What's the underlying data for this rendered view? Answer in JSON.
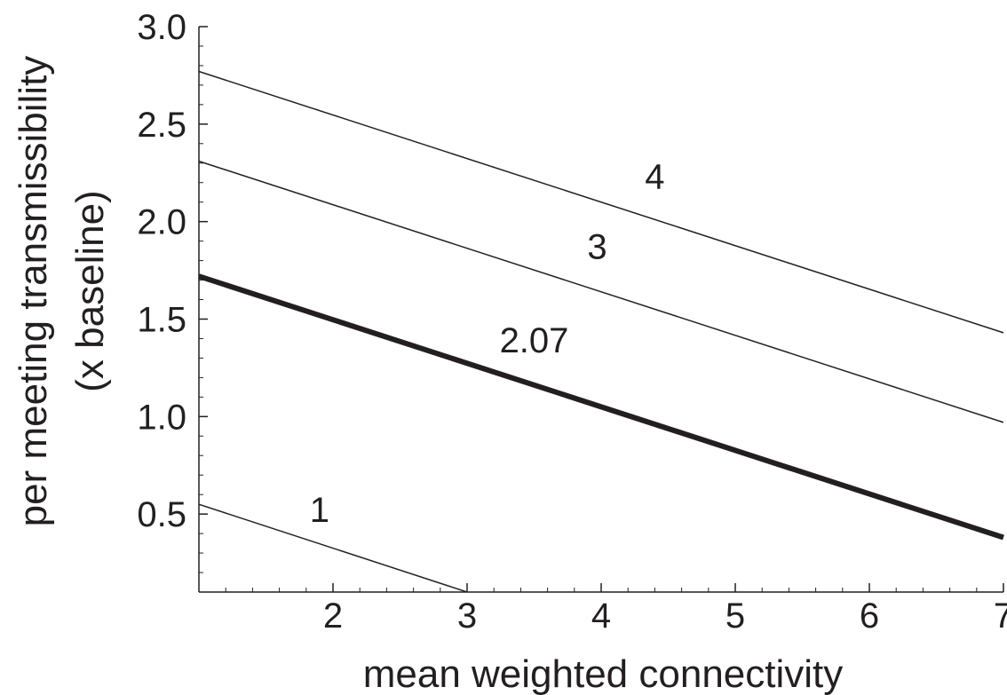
{
  "chart_data": {
    "type": "line",
    "title": "",
    "xlabel": "mean weighted connectivity",
    "ylabel_line1": "per meeting transmissibility",
    "ylabel_line2": "(x baseline)",
    "xlim": [
      1,
      7
    ],
    "ylim": [
      0.1,
      3.0
    ],
    "x_ticks": [
      2,
      3,
      4,
      5,
      6,
      7
    ],
    "y_ticks": [
      0.5,
      1.0,
      1.5,
      2.0,
      2.5,
      3.0
    ],
    "x_tick_labels": [
      "2",
      "3",
      "4",
      "5",
      "6",
      "7"
    ],
    "y_tick_labels": [
      "0.5",
      "1.0",
      "1.5",
      "2.0",
      "2.5",
      "3.0"
    ],
    "grid": false,
    "legend": "none",
    "line_color": "#231f20",
    "series": [
      {
        "label": "4",
        "points": [
          [
            1,
            2.77
          ],
          [
            7,
            1.43
          ]
        ],
        "thick": false,
        "label_at": [
          4.4,
          2.17
        ]
      },
      {
        "label": "3",
        "points": [
          [
            1,
            2.31
          ],
          [
            7,
            0.97
          ]
        ],
        "thick": false,
        "label_at": [
          3.97,
          1.81
        ]
      },
      {
        "label": "2.07",
        "points": [
          [
            1,
            1.72
          ],
          [
            7,
            0.38
          ]
        ],
        "thick": true,
        "label_at": [
          3.5,
          1.33
        ]
      },
      {
        "label": "1",
        "points": [
          [
            1,
            0.55
          ],
          [
            3,
            0.1
          ]
        ],
        "thick": false,
        "label_at": [
          1.9,
          0.46
        ]
      }
    ]
  }
}
